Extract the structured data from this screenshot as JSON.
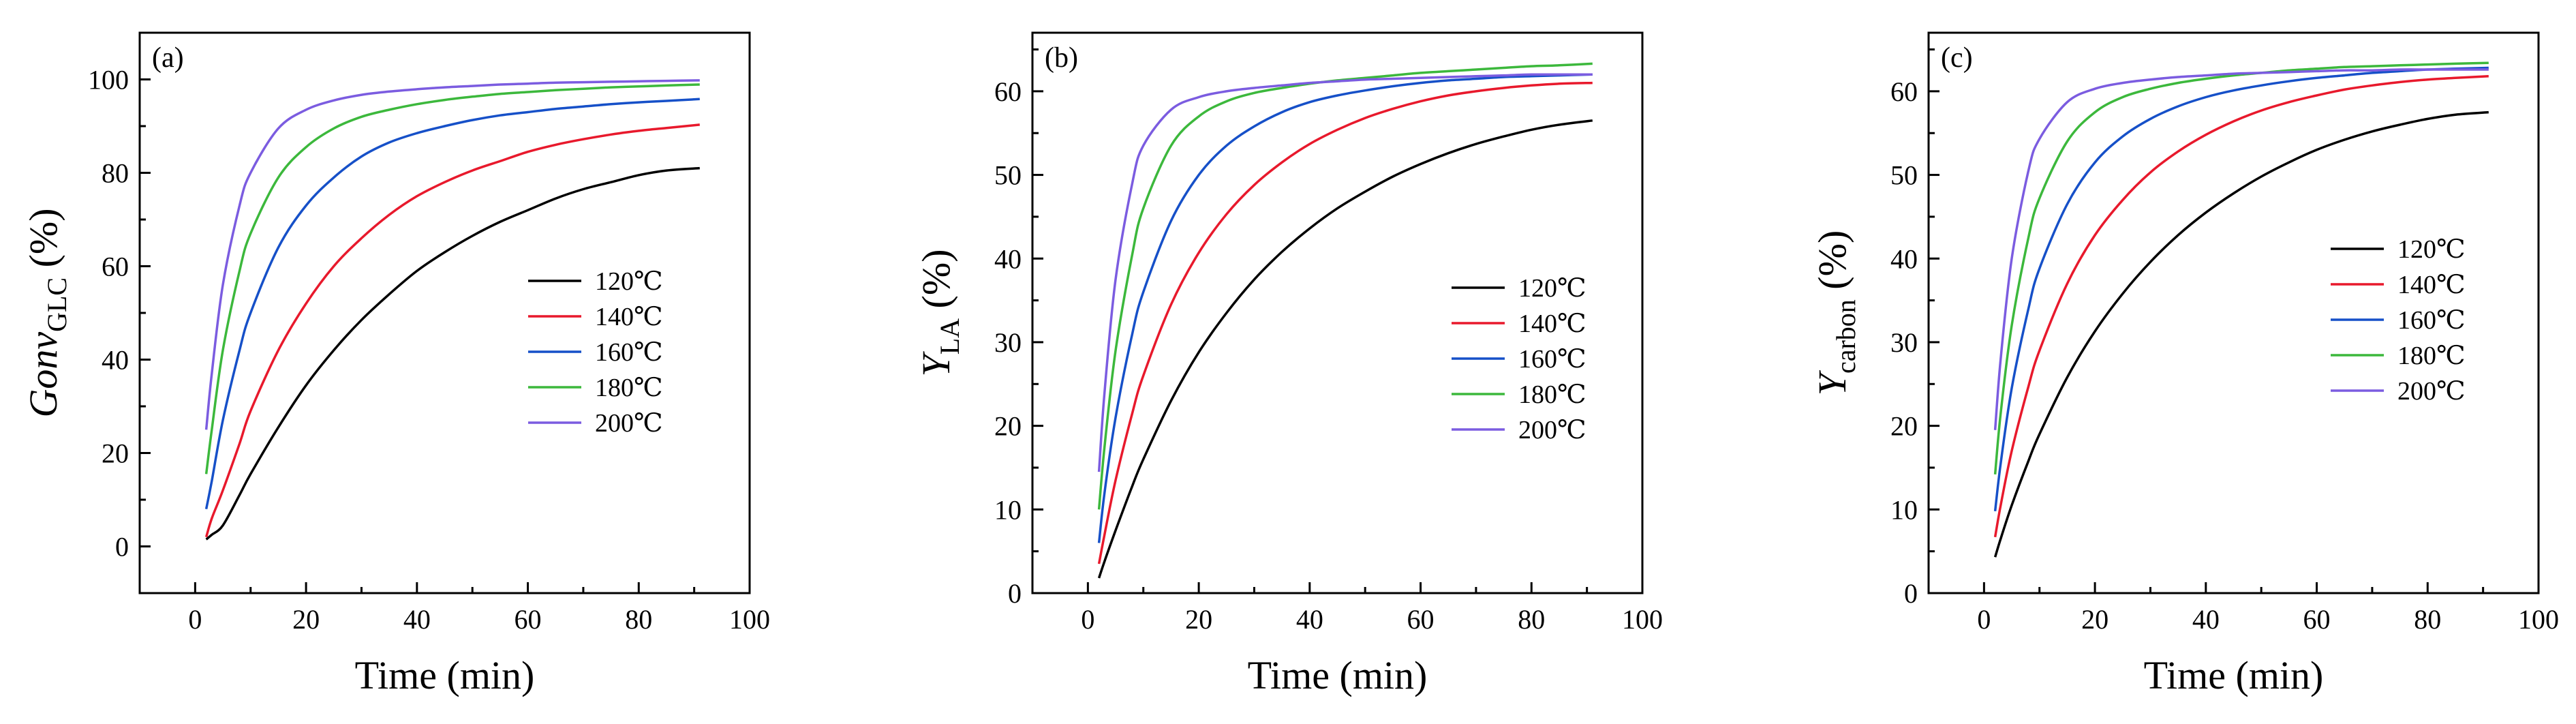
{
  "chart_data": [
    {
      "type": "line",
      "panel_label": "(a)",
      "xlabel": "Time (min)",
      "ylabel_main": "Gonv",
      "ylabel_sub": "GLC",
      "ylabel_tail": " (%)",
      "xlim": [
        -10,
        100
      ],
      "ylim": [
        -10,
        110
      ],
      "xticks": [
        0,
        20,
        40,
        60,
        80,
        100
      ],
      "yticks": [
        0,
        20,
        40,
        60,
        80,
        100
      ],
      "grid": false,
      "legend_position": "middle-right",
      "series": [
        {
          "name": "120℃",
          "color": "#000000",
          "x": [
            2,
            3,
            5,
            8,
            10,
            15,
            20,
            25,
            30,
            35,
            40,
            45,
            50,
            55,
            60,
            65,
            70,
            75,
            80,
            85,
            91
          ],
          "y": [
            1.5,
            2.5,
            4.5,
            11,
            15.5,
            25.5,
            34.5,
            42,
            48.5,
            54,
            59,
            63,
            66.5,
            69.5,
            72,
            74.5,
            76.5,
            78,
            79.5,
            80.5,
            81
          ]
        },
        {
          "name": "140℃",
          "color": "#e8192c",
          "x": [
            2,
            3,
            5,
            8,
            10,
            15,
            20,
            25,
            30,
            35,
            40,
            45,
            50,
            55,
            60,
            65,
            70,
            75,
            80,
            85,
            91
          ],
          "y": [
            2,
            6,
            12,
            22,
            29,
            42,
            52,
            60,
            66,
            71,
            75,
            78,
            80.5,
            82.5,
            84.5,
            86,
            87.2,
            88.2,
            89,
            89.6,
            90.3
          ]
        },
        {
          "name": "160℃",
          "color": "#1650c8",
          "x": [
            2,
            3,
            5,
            8,
            10,
            15,
            20,
            25,
            30,
            35,
            40,
            45,
            50,
            55,
            60,
            65,
            70,
            75,
            80,
            85,
            91
          ],
          "y": [
            8,
            14,
            27,
            42,
            50,
            64,
            73,
            79,
            83.5,
            86.5,
            88.5,
            90,
            91.3,
            92.3,
            93,
            93.7,
            94.2,
            94.7,
            95.1,
            95.4,
            95.8
          ]
        },
        {
          "name": "180℃",
          "color": "#3cb83c",
          "x": [
            2,
            3,
            5,
            8,
            10,
            15,
            20,
            25,
            30,
            35,
            40,
            45,
            50,
            55,
            60,
            65,
            70,
            75,
            80,
            85,
            91
          ],
          "y": [
            15.5,
            25,
            42,
            59,
            67,
            79,
            85.5,
            89.5,
            92,
            93.5,
            94.7,
            95.6,
            96.3,
            96.9,
            97.3,
            97.7,
            98,
            98.3,
            98.5,
            98.7,
            98.9
          ]
        },
        {
          "name": "200℃",
          "color": "#7b5ce0",
          "x": [
            2,
            3,
            5,
            8,
            10,
            15,
            20,
            25,
            30,
            35,
            40,
            45,
            50,
            55,
            60,
            65,
            70,
            75,
            80,
            85,
            91
          ],
          "y": [
            25,
            37,
            56,
            73,
            80,
            89.5,
            93.5,
            95.5,
            96.7,
            97.4,
            97.9,
            98.3,
            98.6,
            98.9,
            99.1,
            99.3,
            99.4,
            99.5,
            99.6,
            99.7,
            99.8
          ]
        }
      ]
    },
    {
      "type": "line",
      "panel_label": "(b)",
      "xlabel": "Time (min)",
      "ylabel_main": "Y",
      "ylabel_sub": "LA",
      "ylabel_tail": " (%)",
      "xlim": [
        -10,
        100
      ],
      "ylim": [
        0,
        67
      ],
      "xticks": [
        0,
        20,
        40,
        60,
        80,
        100
      ],
      "yticks": [
        0,
        10,
        20,
        30,
        40,
        50,
        60
      ],
      "grid": false,
      "legend_position": "middle-right",
      "series": [
        {
          "name": "120℃",
          "color": "#000000",
          "x": [
            2,
            3,
            5,
            8,
            10,
            15,
            20,
            25,
            30,
            35,
            40,
            45,
            50,
            55,
            60,
            65,
            70,
            75,
            80,
            85,
            91
          ],
          "y": [
            1.8,
            3.8,
            7.5,
            12.8,
            16,
            23,
            28.8,
            33.5,
            37.5,
            40.8,
            43.6,
            46,
            48,
            49.8,
            51.3,
            52.6,
            53.7,
            54.6,
            55.4,
            56,
            56.5
          ]
        },
        {
          "name": "140℃",
          "color": "#e8192c",
          "x": [
            2,
            3,
            5,
            8,
            10,
            15,
            20,
            25,
            30,
            35,
            40,
            45,
            50,
            55,
            60,
            65,
            70,
            75,
            80,
            85,
            91
          ],
          "y": [
            3.5,
            7,
            13.5,
            21.5,
            26,
            34.5,
            40.7,
            45.3,
            48.8,
            51.5,
            53.7,
            55.4,
            56.8,
            57.9,
            58.8,
            59.5,
            60,
            60.4,
            60.7,
            60.9,
            61
          ]
        },
        {
          "name": "160℃",
          "color": "#1650c8",
          "x": [
            2,
            3,
            5,
            8,
            10,
            15,
            20,
            25,
            30,
            35,
            40,
            45,
            50,
            55,
            60,
            65,
            70,
            75,
            80,
            85,
            91
          ],
          "y": [
            6,
            12,
            21,
            31,
            36,
            44.5,
            50,
            53.5,
            55.8,
            57.5,
            58.7,
            59.5,
            60.1,
            60.6,
            61,
            61.3,
            61.5,
            61.7,
            61.8,
            61.9,
            62
          ]
        },
        {
          "name": "180℃",
          "color": "#3cb83c",
          "x": [
            2,
            3,
            5,
            8,
            10,
            15,
            20,
            25,
            30,
            35,
            40,
            45,
            50,
            55,
            60,
            65,
            70,
            75,
            80,
            85,
            91
          ],
          "y": [
            10,
            17.5,
            29,
            40.5,
            46,
            53.5,
            57,
            58.8,
            59.8,
            60.4,
            60.9,
            61.3,
            61.6,
            61.9,
            62.2,
            62.4,
            62.6,
            62.8,
            63,
            63.1,
            63.3
          ]
        },
        {
          "name": "200℃",
          "color": "#7b5ce0",
          "x": [
            2,
            3,
            5,
            8,
            10,
            15,
            20,
            25,
            30,
            35,
            40,
            45,
            50,
            55,
            60,
            65,
            70,
            75,
            80,
            85,
            91
          ],
          "y": [
            14.5,
            24,
            37.5,
            49,
            53.5,
            57.8,
            59.3,
            60,
            60.4,
            60.7,
            61,
            61.2,
            61.4,
            61.5,
            61.6,
            61.7,
            61.8,
            61.9,
            62,
            62,
            62
          ]
        }
      ]
    },
    {
      "type": "line",
      "panel_label": "(c)",
      "xlabel": "Time (min)",
      "ylabel_main": "Y",
      "ylabel_sub": "carbon",
      "ylabel_tail": "  (%)",
      "xlim": [
        -10,
        100
      ],
      "ylim": [
        0,
        67
      ],
      "xticks": [
        0,
        20,
        40,
        60,
        80,
        100
      ],
      "yticks": [
        0,
        10,
        20,
        30,
        40,
        50,
        60
      ],
      "grid": false,
      "legend_position": "upper-right",
      "series": [
        {
          "name": "120℃",
          "color": "#000000",
          "x": [
            2,
            3,
            5,
            8,
            10,
            15,
            20,
            25,
            30,
            35,
            40,
            45,
            50,
            55,
            60,
            65,
            70,
            75,
            80,
            85,
            91
          ],
          "y": [
            4.3,
            6.5,
            10.5,
            15.8,
            19,
            25.8,
            31.3,
            35.8,
            39.6,
            42.8,
            45.5,
            47.8,
            49.8,
            51.5,
            53,
            54.2,
            55.2,
            56,
            56.7,
            57.2,
            57.5
          ]
        },
        {
          "name": "140℃",
          "color": "#e8192c",
          "x": [
            2,
            3,
            5,
            8,
            10,
            15,
            20,
            25,
            30,
            35,
            40,
            45,
            50,
            55,
            60,
            65,
            70,
            75,
            80,
            85,
            91
          ],
          "y": [
            6.7,
            10.5,
            17,
            24.7,
            29,
            37,
            42.8,
            47,
            50.3,
            52.8,
            54.8,
            56.4,
            57.7,
            58.7,
            59.5,
            60.2,
            60.7,
            61.1,
            61.4,
            61.6,
            61.8
          ]
        },
        {
          "name": "160℃",
          "color": "#1650c8",
          "x": [
            2,
            3,
            5,
            8,
            10,
            15,
            20,
            25,
            30,
            35,
            40,
            45,
            50,
            55,
            60,
            65,
            70,
            75,
            80,
            85,
            91
          ],
          "y": [
            9.8,
            15.5,
            24.5,
            34,
            38.8,
            46.5,
            51.5,
            54.6,
            56.7,
            58.2,
            59.3,
            60.1,
            60.7,
            61.2,
            61.6,
            61.9,
            62.2,
            62.4,
            62.6,
            62.7,
            62.8
          ]
        },
        {
          "name": "180℃",
          "color": "#3cb83c",
          "x": [
            2,
            3,
            5,
            8,
            10,
            15,
            20,
            25,
            30,
            35,
            40,
            45,
            50,
            55,
            60,
            65,
            70,
            75,
            80,
            85,
            91
          ],
          "y": [
            14.2,
            21.5,
            32,
            42.5,
            47.2,
            54,
            57.5,
            59.3,
            60.3,
            61,
            61.5,
            61.9,
            62.2,
            62.5,
            62.7,
            62.9,
            63,
            63.1,
            63.2,
            63.3,
            63.4
          ]
        },
        {
          "name": "200℃",
          "color": "#7b5ce0",
          "x": [
            2,
            3,
            5,
            8,
            10,
            15,
            20,
            25,
            30,
            35,
            40,
            45,
            50,
            55,
            60,
            65,
            70,
            75,
            80,
            85,
            91
          ],
          "y": [
            19.5,
            28,
            40,
            50.5,
            54.3,
            58.7,
            60.3,
            61,
            61.4,
            61.7,
            61.9,
            62.1,
            62.2,
            62.3,
            62.4,
            62.5,
            62.5,
            62.6,
            62.6,
            62.6,
            62.6
          ]
        }
      ]
    }
  ]
}
